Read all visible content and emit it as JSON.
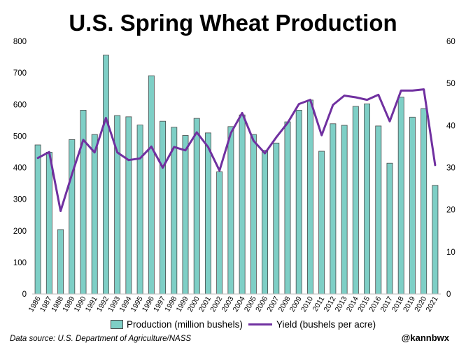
{
  "title": "U.S. Spring Wheat Production",
  "source": "Data source: U.S. Department of Agriculture/NASS",
  "handle": "@kannbwx",
  "colors": {
    "bar": "#7ecfc6",
    "bar_edge": "#4a4a4a",
    "line": "#7030a0"
  },
  "chart_data": {
    "type": "bar",
    "categories": [
      "1986",
      "1987",
      "1988",
      "1989",
      "1990",
      "1991",
      "1992",
      "1993",
      "1994",
      "1995",
      "1996",
      "1997",
      "1998",
      "1999",
      "2000",
      "2001",
      "2002",
      "2003",
      "2004",
      "2005",
      "2006",
      "2007",
      "2008",
      "2009",
      "2010",
      "2011",
      "2012",
      "2013",
      "2014",
      "2015",
      "2016",
      "2017",
      "2018",
      "2019",
      "2020",
      "2021"
    ],
    "series": [
      {
        "name": "Production (million bushels)",
        "type": "bar",
        "axis": "left",
        "values": [
          472,
          449,
          204,
          489,
          582,
          505,
          756,
          565,
          561,
          535,
          691,
          547,
          528,
          502,
          556,
          510,
          387,
          530,
          567,
          505,
          455,
          478,
          545,
          582,
          614,
          452,
          539,
          534,
          594,
          602,
          532,
          414,
          623,
          560,
          587,
          344
        ]
      },
      {
        "name": "Yield (bushels per acre)",
        "type": "line",
        "axis": "right",
        "values": [
          32.3,
          33.7,
          19.7,
          28.4,
          36.6,
          33.6,
          41.8,
          33.6,
          31.8,
          32.2,
          35.0,
          30.0,
          34.9,
          34.1,
          38.4,
          34.9,
          29.3,
          38.2,
          43.0,
          36.4,
          33.4,
          37.2,
          40.6,
          45.1,
          46.1,
          37.7,
          44.9,
          47.1,
          46.7,
          46.1,
          47.3,
          41.0,
          48.3,
          48.3,
          48.6,
          30.6
        ]
      }
    ],
    "yleft": {
      "ticks": [
        "0",
        "100",
        "200",
        "300",
        "400",
        "500",
        "600",
        "700",
        "800"
      ],
      "range": [
        0,
        800
      ]
    },
    "yright": {
      "ticks": [
        "0",
        "10",
        "20",
        "30",
        "40",
        "50",
        "60"
      ],
      "range": [
        0,
        60
      ]
    },
    "legend_position": "bottom",
    "grid": false
  }
}
